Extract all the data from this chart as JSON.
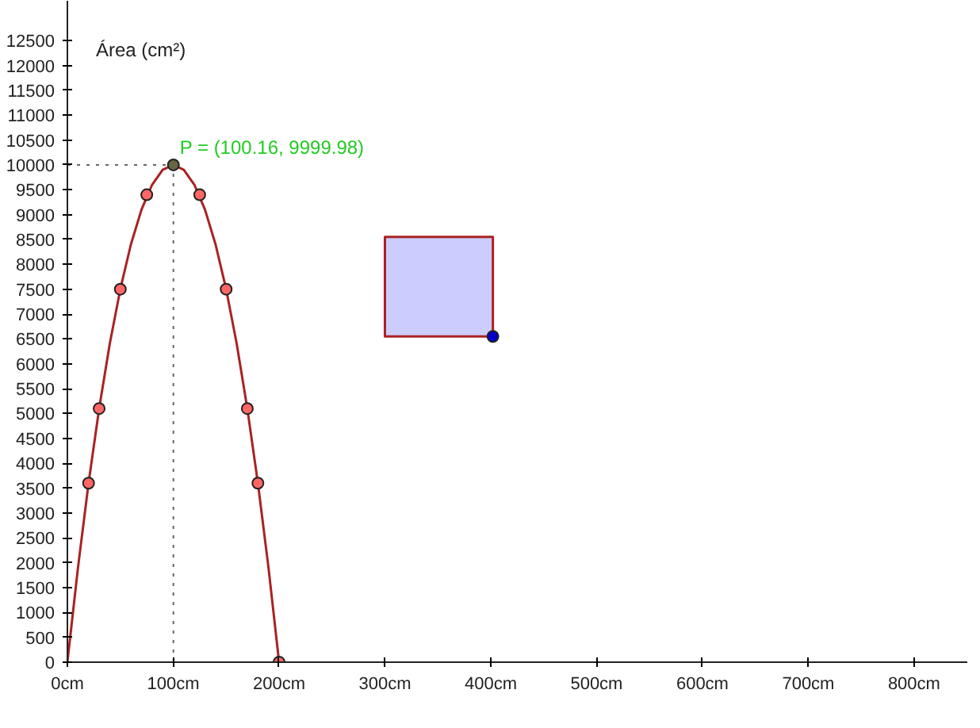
{
  "chart_data": {
    "type": "line",
    "ylabel": "Área (cm²)",
    "xlim": [
      0,
      851
    ],
    "ylim": [
      0,
      13300
    ],
    "xticks": [
      {
        "value": 0,
        "label": "0cm"
      },
      {
        "value": 100,
        "label": "100cm"
      },
      {
        "value": 200,
        "label": "200cm"
      },
      {
        "value": 300,
        "label": "300cm"
      },
      {
        "value": 400,
        "label": "400cm"
      },
      {
        "value": 500,
        "label": "500cm"
      },
      {
        "value": 600,
        "label": "600cm"
      },
      {
        "value": 700,
        "label": "700cm"
      },
      {
        "value": 800,
        "label": "800cm"
      }
    ],
    "yticks": [
      0,
      500,
      1000,
      1500,
      2000,
      2500,
      3000,
      3500,
      4000,
      4500,
      5000,
      5500,
      6000,
      6500,
      7000,
      7500,
      8000,
      8500,
      9000,
      9500,
      10000,
      10500,
      11000,
      11500,
      12000,
      12500
    ],
    "grid": false,
    "series": [
      {
        "color": "#aa2222",
        "x": [
          0,
          10,
          20,
          30,
          40,
          50,
          60,
          70,
          80,
          90,
          100,
          110,
          120,
          130,
          140,
          150,
          160,
          170,
          180,
          190,
          200
        ],
        "values": [
          0,
          1900,
          3600,
          5100,
          6400,
          7500,
          8400,
          9100,
          9600,
          9900,
          10000,
          9900,
          9600,
          9100,
          8400,
          7500,
          6400,
          5100,
          3600,
          1900,
          0
        ]
      },
      {
        "type": "scatter",
        "color": "#ff6666",
        "marker": "circle",
        "x": [
          20,
          30,
          50,
          75,
          125,
          150,
          170,
          180,
          200
        ],
        "values": [
          3600,
          5100,
          7500,
          9400,
          9400,
          7500,
          5100,
          3600,
          0
        ]
      },
      {
        "type": "scatter",
        "color": "#666644",
        "marker": "circle",
        "x": [
          100.16
        ],
        "values": [
          9999.98
        ]
      },
      {
        "type": "area",
        "color": "#ccccff",
        "x": [
          300,
          402,
          402,
          300
        ],
        "values": [
          8550,
          8550,
          6550,
          6550
        ]
      },
      {
        "type": "scatter",
        "color": "#0000cc",
        "marker": "circle",
        "x": [
          402
        ],
        "values": [
          6550
        ]
      }
    ],
    "ref_lines": [
      {
        "axis": "x",
        "value": 100.16,
        "color": "#666666",
        "line_style": "dotted"
      },
      {
        "axis": "y",
        "value": 9999.98,
        "color": "#666666",
        "line_style": "dotted"
      }
    ],
    "annotations": [
      {
        "text": "P = (100.16, 9999.98)",
        "x": 100.16,
        "y": 9999.98
      }
    ]
  }
}
